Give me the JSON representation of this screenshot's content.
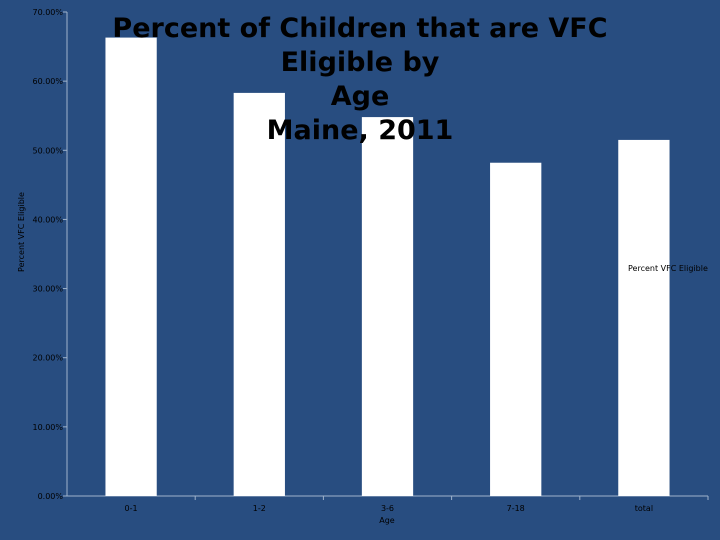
{
  "chart_data": {
    "type": "bar",
    "title_lines": [
      "Percent of Children that are VFC Eligible by",
      "Age",
      "Maine, 2011"
    ],
    "xlabel": "Age",
    "ylabel": "Percent VFC Eligible",
    "categories": [
      "0-1",
      "1-2",
      "3-6",
      "7-18",
      "total"
    ],
    "series": [
      {
        "name": "Percent VFC Eligible",
        "values": [
          66.3,
          58.3,
          54.8,
          48.2,
          51.5
        ]
      }
    ],
    "yticks": [
      "0.00%",
      "10.00%",
      "20.00%",
      "30.00%",
      "40.00%",
      "50.00%",
      "60.00%",
      "70.00%"
    ],
    "ylim": [
      0,
      70
    ],
    "grid": false,
    "legend": "right",
    "colors": {
      "background": "#284d80",
      "bar": "#ffffff",
      "axis": "#9fb3cc",
      "text": "#000000"
    }
  }
}
